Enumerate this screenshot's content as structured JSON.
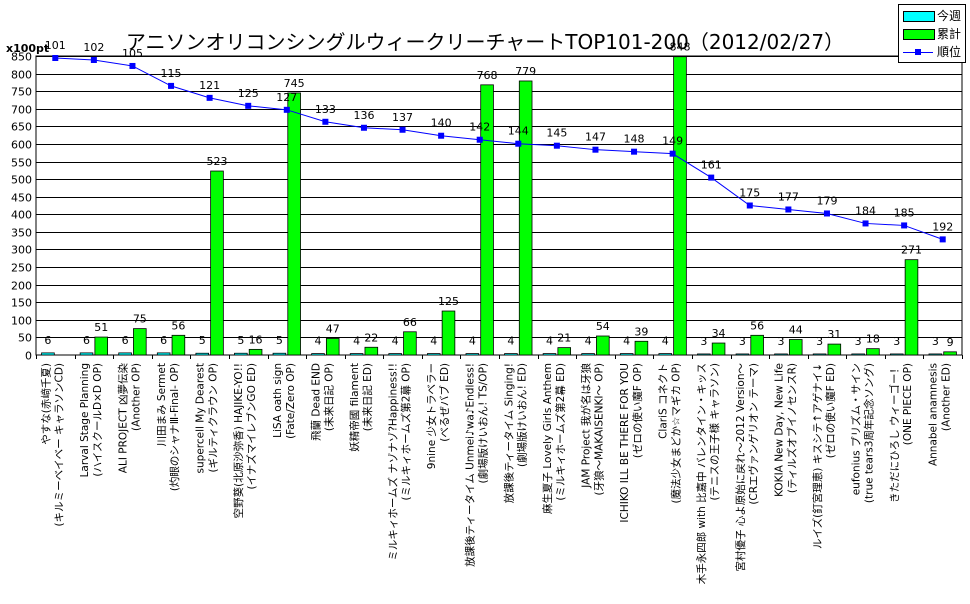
{
  "chart_data": {
    "type": "bar",
    "title": "アニソンオリコンシングルウィークリーチャートTOP101-200（2012/02/27）",
    "y_unit": "x100pt",
    "ylim": [
      0,
      850
    ],
    "ytick_step": 50,
    "y2lim": [
      250,
      100
    ],
    "grid": true,
    "legend_position": "top-right",
    "categories": [
      [
        "やすな(赤﨑千夏)",
        "(キルミーベイベー キャラソンCD)"
      ],
      [
        "Larval Stage Planning",
        "(ハイスクールD×D OP)"
      ],
      [
        "ALI PROJECT 凶夢伝染",
        "(Another OP)"
      ],
      [
        "川田まみ Sermet",
        "(灼眼のシャナⅢ-Final- OP)"
      ],
      [
        "supercell My Dearest",
        "(ギルティクラウン OP)"
      ],
      [
        "空野葵(北原沙弥香) HAJIKE-YO!!",
        "(イナズマイレブンGO ED)"
      ],
      [
        "LiSA oath sign",
        "(Fate/Zero OP)"
      ],
      [
        "飛蘭 Dead END",
        "(未来日記 OP)"
      ],
      [
        "妖精帝國 filament",
        "(未来日記 ED)"
      ],
      [
        "ミルキィホームズ ナゾナゾ?Happiness!!",
        "(ミルキィホームズ第2幕 OP)"
      ],
      [
        "9nine 少女トラベラー",
        "(べるぜバブ ED)"
      ],
      [
        "放課後ティータイム Unmei♪wa♪Endless!",
        "(劇場版けいおん! TS/OP)"
      ],
      [
        "放課後ティータイム Singing!",
        "(劇場版けいおん! ED)"
      ],
      [
        "麻生夏子 Lovely Girls Anthem",
        "(ミルキィホームズ第2幕 ED)"
      ],
      [
        "JAM Project 我が名は牙狼",
        "(牙狼～MAKAISENKI～ OP)"
      ],
      [
        "ICHIKO ILL BE THERE FOR YOU",
        "(ゼロの使い魔F OP)"
      ],
      [
        "ClariS コネクト",
        "(魔法少女まどか☆マギカ OP)"
      ],
      [
        "木手永四郎 with 比嘉中 バレンタイン・キッス",
        "(テニスの王子様 キャラソン)"
      ],
      [
        "宮村優子 心よ原始に戻れ～2012 Version～",
        "(CRエヴァンゲリオン テーマ)"
      ],
      [
        "KOKIA New Day, New Life",
        "(ティルズオブイノセンスR)"
      ],
      [
        "ルイズ(釘宮理恵) キスシテ↑アゲナイ↓",
        "(ゼロの使い魔F ED)"
      ],
      [
        "eufonius プリズム・サイン",
        "(true tears3周年記念ソング)"
      ],
      [
        "きただにひろし ウィーゴー！",
        "(ONE PIECE OP)"
      ],
      [
        "Annabel anamnesis",
        "(Another ED)"
      ]
    ],
    "series": [
      {
        "name": "今週",
        "color": "#00ffff",
        "axis": "left",
        "values": [
          6,
          6,
          6,
          6,
          5,
          5,
          5,
          4,
          4,
          4,
          4,
          4,
          4,
          4,
          4,
          4,
          4,
          3,
          3,
          3,
          3,
          3,
          3,
          3
        ]
      },
      {
        "name": "累計",
        "color": "#00ff00",
        "axis": "left",
        "values": [
          null,
          51,
          75,
          56,
          523,
          16,
          745,
          47,
          22,
          66,
          125,
          768,
          779,
          21,
          54,
          39,
          848,
          34,
          56,
          44,
          31,
          18,
          271,
          9
        ]
      },
      {
        "name": "順位",
        "color": "#0000ff",
        "axis": "right",
        "type": "line",
        "values": [
          101,
          102,
          105,
          115,
          121,
          125,
          127,
          133,
          136,
          137,
          140,
          142,
          144,
          145,
          147,
          148,
          149,
          161,
          175,
          177,
          179,
          184,
          185,
          192
        ]
      }
    ]
  }
}
